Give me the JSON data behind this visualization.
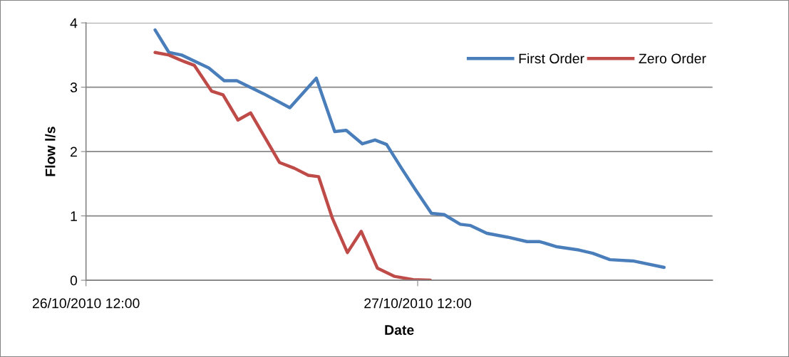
{
  "chart_data": {
    "type": "line",
    "xlabel": "Date",
    "ylabel": "Flow l/s",
    "xlim": [
      "2010-10-26T12:00",
      "2010-10-28T09:20"
    ],
    "xticks": [
      {
        "value": "2010-10-26T12:00",
        "label": "26/10/2010 12:00"
      },
      {
        "value": "2010-10-27T12:00",
        "label": "27/10/2010 12:00"
      }
    ],
    "ylim": [
      0,
      4
    ],
    "yticks": [
      0,
      1,
      2,
      3,
      4
    ],
    "grid": "y",
    "legend": "top right",
    "line_style": "solid",
    "marker": "none",
    "series": [
      {
        "name": "First Order",
        "color": "#4a7ebb",
        "x": [
          "2010-10-26T17:00",
          "2010-10-26T18:00",
          "2010-10-26T18:55",
          "2010-10-26T20:53",
          "2010-10-26T22:00",
          "2010-10-26T22:55",
          "2010-10-27T00:50",
          "2010-10-27T02:45",
          "2010-10-27T04:40",
          "2010-10-27T06:00",
          "2010-10-27T06:50",
          "2010-10-27T08:00",
          "2010-10-27T08:55",
          "2010-10-27T09:45",
          "2010-10-27T10:50",
          "2010-10-27T11:50",
          "2010-10-27T13:00",
          "2010-10-27T13:55",
          "2010-10-27T15:05",
          "2010-10-27T15:50",
          "2010-10-27T17:00",
          "2010-10-27T18:30",
          "2010-10-27T19:55",
          "2010-10-27T20:50",
          "2010-10-27T22:05",
          "2010-10-27T23:40",
          "2010-10-28T00:40",
          "2010-10-28T01:55",
          "2010-10-28T03:35",
          "2010-10-28T05:50"
        ],
        "values": [
          3.89,
          3.54,
          3.5,
          3.3,
          3.1,
          3.1,
          2.9,
          2.68,
          3.14,
          2.31,
          2.33,
          2.12,
          2.18,
          2.11,
          1.74,
          1.41,
          1.04,
          1.02,
          0.87,
          0.85,
          0.73,
          0.67,
          0.6,
          0.6,
          0.52,
          0.47,
          0.42,
          0.32,
          0.3,
          0.2
        ]
      },
      {
        "name": "Zero Order",
        "color": "#be4b48",
        "x": [
          "2010-10-26T17:00",
          "2010-10-26T18:00",
          "2010-10-26T19:05",
          "2010-10-26T19:50",
          "2010-10-26T21:05",
          "2010-10-26T21:55",
          "2010-10-26T23:00",
          "2010-10-26T23:55",
          "2010-10-27T02:00",
          "2010-10-27T03:05",
          "2010-10-27T04:05",
          "2010-10-27T04:50",
          "2010-10-27T05:50",
          "2010-10-27T06:55",
          "2010-10-27T07:55",
          "2010-10-27T09:05",
          "2010-10-27T10:20",
          "2010-10-27T11:40",
          "2010-10-27T12:55"
        ],
        "values": [
          3.54,
          3.5,
          3.4,
          3.34,
          2.94,
          2.88,
          2.49,
          2.6,
          1.83,
          1.74,
          1.63,
          1.61,
          0.96,
          0.43,
          0.76,
          0.19,
          0.06,
          0.01,
          0.0
        ]
      }
    ]
  }
}
